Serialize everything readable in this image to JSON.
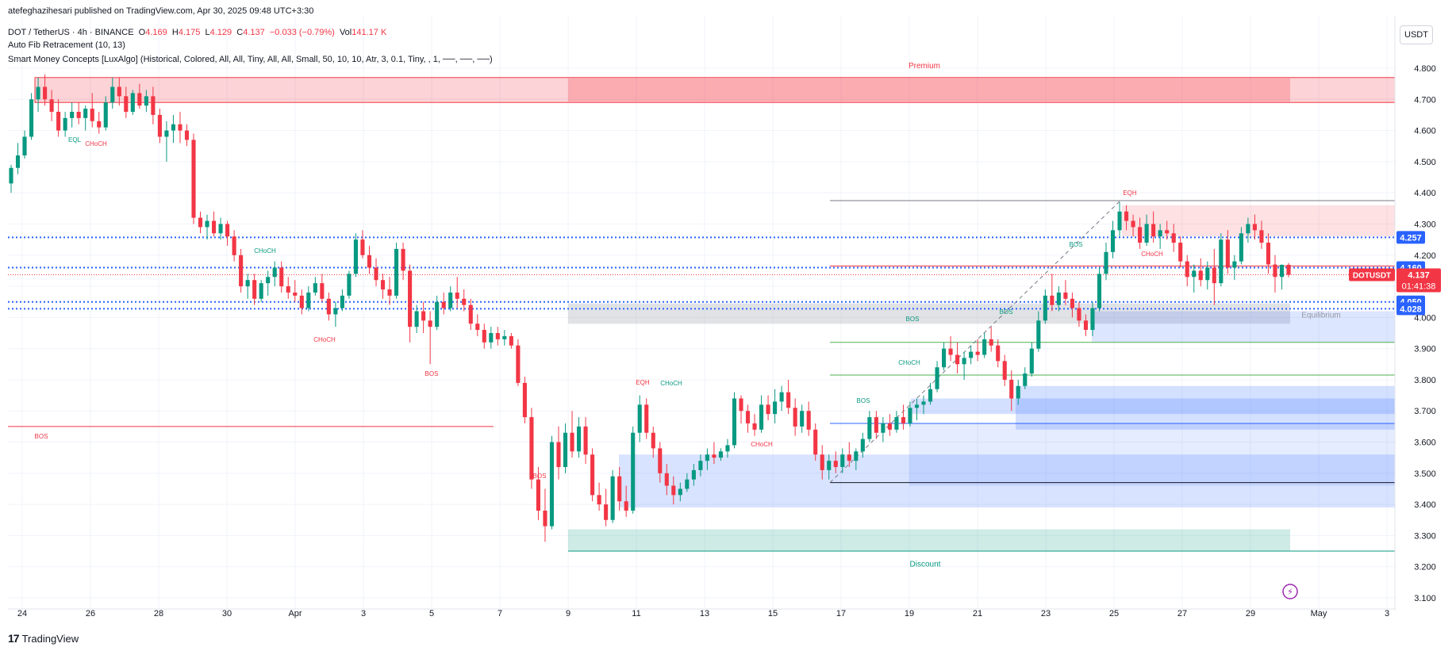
{
  "header": {
    "published": "atefeghazihesari published on TradingView.com, Apr 30, 2025 09:48 UTC+3:30",
    "symbol": "DOT / TetherUS · 4h · BINANCE",
    "o_label": "O",
    "o_value": "4.169",
    "h_label": "H",
    "h_value": "4.175",
    "l_label": "L",
    "l_value": "4.129",
    "c_label": "C",
    "c_value": "4.137",
    "change": "−0.033 (−0.79%)",
    "vol_label": "Vol",
    "vol_value": "141.17 K",
    "indicator1": "Auto Fib Retracement (10, 13)",
    "indicator2": "Smart Money Concepts [LuxAlgo] (Historical, Colored, All, All, Tiny, All, All, Small, 50, 10, 10, Atr, 3, 0.1, Tiny, , 1, ──, ──, ──)"
  },
  "currency": "USDT",
  "branding": "TradingView",
  "colors": {
    "up": "#089981",
    "down": "#f23645",
    "premium": "#f23645",
    "discount": "#089981",
    "fib": "#2962ff",
    "ob": "#2962ff",
    "price_label": "#f23645"
  },
  "chart_data": {
    "type": "candlestick",
    "symbol": "DOTUSDT",
    "ylim": [
      3.07,
      4.86
    ],
    "y_ticks": [
      "4.800",
      "4.700",
      "4.600",
      "4.500",
      "4.400",
      "4.300",
      "4.200",
      "4.100",
      "4.000",
      "3.900",
      "3.800",
      "3.700",
      "3.600",
      "3.500",
      "3.400",
      "3.300",
      "3.200",
      "3.100"
    ],
    "x_ticks": [
      "24",
      "26",
      "28",
      "30",
      "Apr",
      "3",
      "5",
      "7",
      "9",
      "11",
      "13",
      "15",
      "17",
      "19",
      "21",
      "23",
      "25",
      "27",
      "29",
      "May",
      "3"
    ],
    "candles": [
      [
        4.43,
        4.49,
        4.4,
        4.48
      ],
      [
        4.48,
        4.56,
        4.46,
        4.52
      ],
      [
        4.52,
        4.6,
        4.51,
        4.58
      ],
      [
        4.58,
        4.72,
        4.57,
        4.7
      ],
      [
        4.7,
        4.77,
        4.66,
        4.74
      ],
      [
        4.74,
        4.78,
        4.68,
        4.7
      ],
      [
        4.7,
        4.73,
        4.63,
        4.66
      ],
      [
        4.66,
        4.7,
        4.58,
        4.6
      ],
      [
        4.6,
        4.66,
        4.58,
        4.64
      ],
      [
        4.64,
        4.69,
        4.61,
        4.66
      ],
      [
        4.66,
        4.69,
        4.62,
        4.64
      ],
      [
        4.64,
        4.68,
        4.6,
        4.67
      ],
      [
        4.67,
        4.72,
        4.61,
        4.63
      ],
      [
        4.63,
        4.66,
        4.59,
        4.61
      ],
      [
        4.61,
        4.71,
        4.6,
        4.69
      ],
      [
        4.69,
        4.77,
        4.67,
        4.74
      ],
      [
        4.74,
        4.77,
        4.68,
        4.71
      ],
      [
        4.71,
        4.74,
        4.64,
        4.66
      ],
      [
        4.66,
        4.73,
        4.65,
        4.72
      ],
      [
        4.72,
        4.75,
        4.67,
        4.68
      ],
      [
        4.68,
        4.73,
        4.66,
        4.71
      ],
      [
        4.71,
        4.74,
        4.62,
        4.65
      ],
      [
        4.65,
        4.67,
        4.56,
        4.58
      ],
      [
        4.58,
        4.63,
        4.5,
        4.6
      ],
      [
        4.6,
        4.65,
        4.56,
        4.62
      ],
      [
        4.62,
        4.66,
        4.56,
        4.6
      ],
      [
        4.6,
        4.62,
        4.55,
        4.57
      ],
      [
        4.57,
        4.59,
        4.3,
        4.32
      ],
      [
        4.32,
        4.34,
        4.27,
        4.29
      ],
      [
        4.29,
        4.33,
        4.25,
        4.31
      ],
      [
        4.31,
        4.34,
        4.26,
        4.27
      ],
      [
        4.27,
        4.32,
        4.25,
        4.3
      ],
      [
        4.3,
        4.31,
        4.23,
        4.26
      ],
      [
        4.26,
        4.28,
        4.18,
        4.2
      ],
      [
        4.2,
        4.22,
        4.08,
        4.1
      ],
      [
        4.1,
        4.14,
        4.06,
        4.12
      ],
      [
        4.12,
        4.14,
        4.04,
        4.06
      ],
      [
        4.06,
        4.12,
        4.05,
        4.11
      ],
      [
        4.11,
        4.15,
        4.07,
        4.13
      ],
      [
        4.13,
        4.18,
        4.1,
        4.16
      ],
      [
        4.16,
        4.18,
        4.08,
        4.1
      ],
      [
        4.1,
        4.13,
        4.06,
        4.08
      ],
      [
        4.08,
        4.12,
        4.05,
        4.07
      ],
      [
        4.07,
        4.09,
        4.01,
        4.03
      ],
      [
        4.03,
        4.1,
        4.02,
        4.08
      ],
      [
        4.08,
        4.13,
        4.07,
        4.11
      ],
      [
        4.11,
        4.14,
        4.05,
        4.06
      ],
      [
        4.06,
        4.08,
        3.99,
        4.01
      ],
      [
        4.01,
        4.05,
        3.97,
        4.03
      ],
      [
        4.03,
        4.09,
        4.02,
        4.07
      ],
      [
        4.07,
        4.15,
        4.06,
        4.14
      ],
      [
        4.14,
        4.27,
        4.13,
        4.25
      ],
      [
        4.25,
        4.28,
        4.19,
        4.2
      ],
      [
        4.2,
        4.23,
        4.14,
        4.16
      ],
      [
        4.16,
        4.19,
        4.1,
        4.12
      ],
      [
        4.12,
        4.14,
        4.06,
        4.09
      ],
      [
        4.09,
        4.13,
        4.04,
        4.07
      ],
      [
        4.07,
        4.24,
        4.06,
        4.22
      ],
      [
        4.22,
        4.24,
        4.12,
        4.15
      ],
      [
        4.15,
        4.17,
        3.92,
        3.97
      ],
      [
        3.97,
        4.04,
        3.95,
        4.02
      ],
      [
        4.02,
        4.05,
        3.95,
        3.99
      ],
      [
        3.99,
        4.02,
        3.85,
        3.97
      ],
      [
        3.97,
        4.07,
        3.96,
        4.05
      ],
      [
        4.05,
        4.08,
        4.01,
        4.03
      ],
      [
        4.03,
        4.1,
        4.02,
        4.08
      ],
      [
        4.08,
        4.13,
        4.03,
        4.06
      ],
      [
        4.06,
        4.09,
        4.02,
        4.04
      ],
      [
        4.04,
        4.06,
        3.96,
        3.98
      ],
      [
        3.98,
        4.01,
        3.94,
        3.96
      ],
      [
        3.96,
        3.98,
        3.9,
        3.92
      ],
      [
        3.92,
        3.97,
        3.9,
        3.95
      ],
      [
        3.95,
        3.97,
        3.91,
        3.93
      ],
      [
        3.93,
        3.96,
        3.91,
        3.94
      ],
      [
        3.94,
        3.95,
        3.9,
        3.91
      ],
      [
        3.91,
        3.93,
        3.78,
        3.79
      ],
      [
        3.79,
        3.81,
        3.66,
        3.68
      ],
      [
        3.68,
        3.71,
        3.45,
        3.48
      ],
      [
        3.48,
        3.52,
        3.35,
        3.38
      ],
      [
        3.38,
        3.45,
        3.28,
        3.33
      ],
      [
        3.33,
        3.62,
        3.32,
        3.6
      ],
      [
        3.6,
        3.65,
        3.48,
        3.52
      ],
      [
        3.52,
        3.66,
        3.5,
        3.63
      ],
      [
        3.63,
        3.7,
        3.55,
        3.57
      ],
      [
        3.57,
        3.68,
        3.55,
        3.65
      ],
      [
        3.65,
        3.68,
        3.53,
        3.56
      ],
      [
        3.56,
        3.58,
        3.41,
        3.43
      ],
      [
        3.43,
        3.47,
        3.38,
        3.4
      ],
      [
        3.4,
        3.45,
        3.33,
        3.35
      ],
      [
        3.35,
        3.51,
        3.34,
        3.49
      ],
      [
        3.49,
        3.52,
        3.38,
        3.41
      ],
      [
        3.41,
        3.46,
        3.36,
        3.38
      ],
      [
        3.38,
        3.65,
        3.37,
        3.63
      ],
      [
        3.63,
        3.75,
        3.6,
        3.72
      ],
      [
        3.72,
        3.74,
        3.61,
        3.63
      ],
      [
        3.63,
        3.65,
        3.55,
        3.58
      ],
      [
        3.58,
        3.6,
        3.47,
        3.5
      ],
      [
        3.5,
        3.53,
        3.43,
        3.46
      ],
      [
        3.46,
        3.49,
        3.4,
        3.43
      ],
      [
        3.43,
        3.47,
        3.41,
        3.45
      ],
      [
        3.45,
        3.5,
        3.44,
        3.48
      ],
      [
        3.48,
        3.53,
        3.46,
        3.51
      ],
      [
        3.51,
        3.56,
        3.49,
        3.54
      ],
      [
        3.54,
        3.58,
        3.51,
        3.56
      ],
      [
        3.56,
        3.6,
        3.53,
        3.55
      ],
      [
        3.55,
        3.58,
        3.54,
        3.57
      ],
      [
        3.57,
        3.61,
        3.55,
        3.59
      ],
      [
        3.59,
        3.76,
        3.58,
        3.74
      ],
      [
        3.74,
        3.75,
        3.66,
        3.7
      ],
      [
        3.7,
        3.72,
        3.63,
        3.66
      ],
      [
        3.66,
        3.69,
        3.62,
        3.64
      ],
      [
        3.64,
        3.75,
        3.63,
        3.72
      ],
      [
        3.72,
        3.75,
        3.67,
        3.69
      ],
      [
        3.69,
        3.77,
        3.66,
        3.73
      ],
      [
        3.73,
        3.78,
        3.7,
        3.76
      ],
      [
        3.76,
        3.8,
        3.69,
        3.71
      ],
      [
        3.71,
        3.74,
        3.62,
        3.65
      ],
      [
        3.65,
        3.72,
        3.63,
        3.7
      ],
      [
        3.7,
        3.73,
        3.62,
        3.64
      ],
      [
        3.64,
        3.66,
        3.54,
        3.56
      ],
      [
        3.56,
        3.59,
        3.48,
        3.51
      ],
      [
        3.51,
        3.56,
        3.48,
        3.54
      ],
      [
        3.54,
        3.57,
        3.5,
        3.52
      ],
      [
        3.52,
        3.58,
        3.5,
        3.56
      ],
      [
        3.56,
        3.6,
        3.52,
        3.54
      ],
      [
        3.54,
        3.58,
        3.51,
        3.57
      ],
      [
        3.57,
        3.63,
        3.55,
        3.61
      ],
      [
        3.61,
        3.7,
        3.6,
        3.68
      ],
      [
        3.68,
        3.7,
        3.61,
        3.63
      ],
      [
        3.63,
        3.68,
        3.6,
        3.66
      ],
      [
        3.66,
        3.69,
        3.62,
        3.64
      ],
      [
        3.64,
        3.7,
        3.63,
        3.68
      ],
      [
        3.68,
        3.72,
        3.64,
        3.66
      ],
      [
        3.66,
        3.73,
        3.65,
        3.71
      ],
      [
        3.71,
        3.74,
        3.67,
        3.72
      ],
      [
        3.72,
        3.75,
        3.69,
        3.73
      ],
      [
        3.73,
        3.79,
        3.72,
        3.77
      ],
      [
        3.77,
        3.86,
        3.76,
        3.84
      ],
      [
        3.84,
        3.92,
        3.83,
        3.9
      ],
      [
        3.9,
        3.94,
        3.86,
        3.88
      ],
      [
        3.88,
        3.92,
        3.82,
        3.85
      ],
      [
        3.85,
        3.89,
        3.8,
        3.87
      ],
      [
        3.87,
        3.91,
        3.85,
        3.89
      ],
      [
        3.89,
        3.93,
        3.86,
        3.88
      ],
      [
        3.88,
        3.95,
        3.87,
        3.93
      ],
      [
        3.93,
        3.97,
        3.89,
        3.91
      ],
      [
        3.91,
        3.93,
        3.84,
        3.86
      ],
      [
        3.86,
        3.88,
        3.78,
        3.8
      ],
      [
        3.8,
        3.83,
        3.7,
        3.74
      ],
      [
        3.74,
        3.8,
        3.72,
        3.78
      ],
      [
        3.78,
        3.84,
        3.77,
        3.82
      ],
      [
        3.82,
        3.92,
        3.81,
        3.9
      ],
      [
        3.9,
        4.02,
        3.89,
        3.99
      ],
      [
        3.99,
        4.09,
        3.98,
        4.07
      ],
      [
        4.07,
        4.14,
        4.02,
        4.04
      ],
      [
        4.04,
        4.1,
        4.02,
        4.08
      ],
      [
        4.08,
        4.12,
        4.04,
        4.06
      ],
      [
        4.06,
        4.08,
        4.0,
        4.03
      ],
      [
        4.03,
        4.05,
        3.97,
        3.99
      ],
      [
        3.99,
        4.01,
        3.94,
        3.96
      ],
      [
        3.96,
        4.05,
        3.94,
        4.03
      ],
      [
        4.03,
        4.16,
        4.02,
        4.14
      ],
      [
        4.14,
        4.24,
        4.12,
        4.21
      ],
      [
        4.21,
        4.31,
        4.19,
        4.28
      ],
      [
        4.28,
        4.37,
        4.26,
        4.34
      ],
      [
        4.34,
        4.36,
        4.28,
        4.31
      ],
      [
        4.31,
        4.33,
        4.26,
        4.29
      ],
      [
        4.29,
        4.32,
        4.22,
        4.24
      ],
      [
        4.24,
        4.33,
        4.23,
        4.3
      ],
      [
        4.3,
        4.34,
        4.24,
        4.26
      ],
      [
        4.26,
        4.3,
        4.22,
        4.28
      ],
      [
        4.28,
        4.31,
        4.25,
        4.27
      ],
      [
        4.27,
        4.3,
        4.21,
        4.24
      ],
      [
        4.24,
        4.26,
        4.16,
        4.18
      ],
      [
        4.18,
        4.2,
        4.1,
        4.13
      ],
      [
        4.13,
        4.17,
        4.08,
        4.15
      ],
      [
        4.15,
        4.19,
        4.1,
        4.12
      ],
      [
        4.12,
        4.18,
        4.09,
        4.16
      ],
      [
        4.16,
        4.22,
        4.04,
        4.11
      ],
      [
        4.11,
        4.27,
        4.1,
        4.25
      ],
      [
        4.25,
        4.28,
        4.14,
        4.16
      ],
      [
        4.16,
        4.2,
        4.12,
        4.18
      ],
      [
        4.18,
        4.29,
        4.17,
        4.27
      ],
      [
        4.27,
        4.32,
        4.24,
        4.3
      ],
      [
        4.3,
        4.33,
        4.25,
        4.28
      ],
      [
        4.28,
        4.31,
        4.22,
        4.24
      ],
      [
        4.24,
        4.27,
        4.14,
        4.17
      ],
      [
        4.17,
        4.2,
        4.08,
        4.13
      ],
      [
        4.13,
        4.17,
        4.09,
        4.169
      ],
      [
        4.169,
        4.175,
        4.129,
        4.137
      ]
    ],
    "levels": [
      {
        "price": 4.257,
        "label": "4.257"
      },
      {
        "price": 4.16,
        "label": "4.160"
      },
      {
        "price": 4.05,
        "label": "4.050"
      },
      {
        "price": 4.028,
        "label": "4.028"
      }
    ],
    "last_price": {
      "symbol": "DOTUSDT",
      "price": 4.137,
      "label": "4.137",
      "countdown": "01:41:38"
    },
    "zones": [
      {
        "label": "Premium",
        "top": 4.77,
        "bottom": 4.69
      },
      {
        "label": "Equilibrium",
        "top": 4.045,
        "bottom": 3.98
      },
      {
        "label": "Discount",
        "top": 3.32,
        "bottom": 3.25
      }
    ],
    "annotations": [
      "EQL",
      "CHoCH",
      "CHoCH",
      "CHoCH",
      "BOS",
      "BOS",
      "BOS",
      "EQH",
      "CHoCH",
      "CHoCH",
      "BOS",
      "CHoCH",
      "BOS",
      "BOS",
      "BOS",
      "EQH",
      "CHoCH"
    ]
  }
}
